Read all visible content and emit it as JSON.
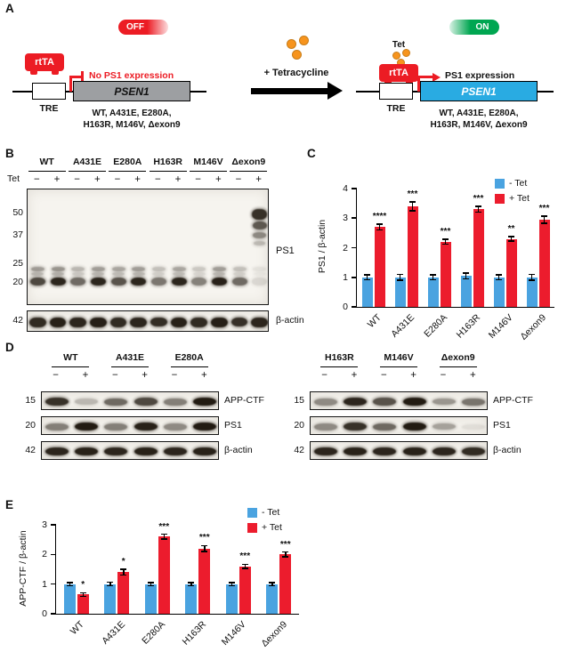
{
  "colors": {
    "red": "#ec1c24",
    "blue": "#4aa3e0",
    "green": "#00a651",
    "orange": "#f7941d",
    "gray_gene": "#9d9fa2",
    "blue_gene": "#29abe2"
  },
  "panelA": {
    "label": "A",
    "off_badge": "OFF",
    "on_badge": "ON",
    "rtta": "rtTA",
    "tre": "TRE",
    "gene": "PSEN1",
    "no_expression": "No PS1 expression",
    "expression": "PS1 expression",
    "tet": "Tet",
    "tetracycline": "+ Tetracycline",
    "variants_line1": "WT, A431E, E280A,",
    "variants_line2": "H163R, M146V, Δexon9"
  },
  "panelB": {
    "label": "B",
    "groups": [
      "WT",
      "A431E",
      "E280A",
      "H163R",
      "M146V",
      "Δexon9"
    ],
    "tet_label": "Tet",
    "minus": "−",
    "plus": "+",
    "mw": [
      "50",
      "37",
      "25",
      "20"
    ],
    "ps1_label": "PS1",
    "actin_mw": "42",
    "actin_label": "β-actin"
  },
  "panelC": {
    "label": "C"
  },
  "panelD": {
    "label": "D",
    "left_groups": [
      "WT",
      "A431E",
      "E280A"
    ],
    "right_groups": [
      "H163R",
      "M146V",
      "Δexon9"
    ],
    "minus": "−",
    "plus": "+",
    "rows": [
      {
        "mw": "15",
        "label": "APP-CTF"
      },
      {
        "mw": "20",
        "label": "PS1"
      },
      {
        "mw": "42",
        "label": "β-actin"
      }
    ]
  },
  "panelE": {
    "label": "E"
  },
  "blots": {
    "b_ps1": [
      {
        "u": 0.5,
        "m": 0.75,
        "s": 0
      },
      {
        "u": 0.55,
        "m": 0.9,
        "s": 0
      },
      {
        "u": 0.35,
        "m": 0.6,
        "s": 0
      },
      {
        "u": 0.5,
        "m": 0.9,
        "s": 0
      },
      {
        "u": 0.45,
        "m": 0.7,
        "s": 0
      },
      {
        "u": 0.5,
        "m": 0.9,
        "s": 0
      },
      {
        "u": 0.3,
        "m": 0.55,
        "s": 0
      },
      {
        "u": 0.45,
        "m": 0.9,
        "s": 0
      },
      {
        "u": 0.25,
        "m": 0.5,
        "s": 0
      },
      {
        "u": 0.5,
        "m": 0.92,
        "s": 0
      },
      {
        "u": 0.3,
        "m": 0.6,
        "s": 0
      },
      {
        "u": 0.1,
        "m": 0.12,
        "s": 0.85
      }
    ],
    "b_actin": [
      0.88,
      0.92,
      0.9,
      0.93,
      0.88,
      0.9,
      0.87,
      0.92,
      0.88,
      0.93,
      0.86,
      0.9
    ],
    "d_left": {
      "appctf": [
        0.85,
        0.25,
        0.6,
        0.75,
        0.5,
        0.95
      ],
      "ps1": [
        0.5,
        0.95,
        0.5,
        0.92,
        0.45,
        0.95
      ],
      "actin": [
        0.9,
        0.92,
        0.9,
        0.92,
        0.9,
        0.92
      ]
    },
    "d_right": {
      "appctf": [
        0.45,
        0.9,
        0.7,
        0.95,
        0.4,
        0.55
      ],
      "ps1": [
        0.45,
        0.85,
        0.6,
        0.95,
        0.35,
        0.08
      ],
      "actin": [
        0.9,
        0.92,
        0.9,
        0.92,
        0.9,
        0.88
      ]
    }
  },
  "chart_data": [
    {
      "id": "C",
      "type": "bar",
      "title": "",
      "ylabel": "PS1 / β-actin",
      "xlabel": "",
      "categories": [
        "WT",
        "A431E",
        "E280A",
        "H163R",
        "M146V",
        "Δexon9"
      ],
      "ylim": [
        0,
        4
      ],
      "yticks": [
        0,
        1,
        2,
        3,
        4
      ],
      "grid": false,
      "legend_position": "upper-right",
      "series": [
        {
          "name": "- Tet",
          "color": "#4aa3e0",
          "values": [
            1.0,
            1.0,
            1.0,
            1.05,
            1.0,
            1.0
          ],
          "errors": [
            0.08,
            0.1,
            0.08,
            0.1,
            0.08,
            0.1
          ]
        },
        {
          "name": "+ Tet",
          "color": "#ec1c2d",
          "values": [
            2.7,
            3.4,
            2.2,
            3.3,
            2.3,
            2.95
          ],
          "errors": [
            0.1,
            0.15,
            0.08,
            0.1,
            0.08,
            0.12
          ]
        }
      ],
      "significance": [
        "****",
        "***",
        "***",
        "***",
        "**",
        "***"
      ]
    },
    {
      "id": "E",
      "type": "bar",
      "title": "",
      "ylabel": "APP-CTF / β-actin",
      "xlabel": "",
      "categories": [
        "WT",
        "A431E",
        "E280A",
        "H163R",
        "M146V",
        "Δexon9"
      ],
      "ylim": [
        0,
        3
      ],
      "yticks": [
        0,
        1,
        2,
        3
      ],
      "grid": false,
      "legend_position": "upper-right",
      "series": [
        {
          "name": "- Tet",
          "color": "#4aa3e0",
          "values": [
            1.0,
            1.0,
            1.0,
            1.0,
            1.0,
            1.0
          ],
          "errors": [
            0.05,
            0.06,
            0.05,
            0.05,
            0.05,
            0.05
          ]
        },
        {
          "name": "+ Tet",
          "color": "#ec1c2d",
          "values": [
            0.65,
            1.4,
            2.6,
            2.2,
            1.6,
            2.0
          ],
          "errors": [
            0.06,
            0.1,
            0.08,
            0.1,
            0.07,
            0.08
          ]
        }
      ],
      "significance": [
        "*",
        "*",
        "***",
        "***",
        "***",
        "***"
      ]
    }
  ]
}
